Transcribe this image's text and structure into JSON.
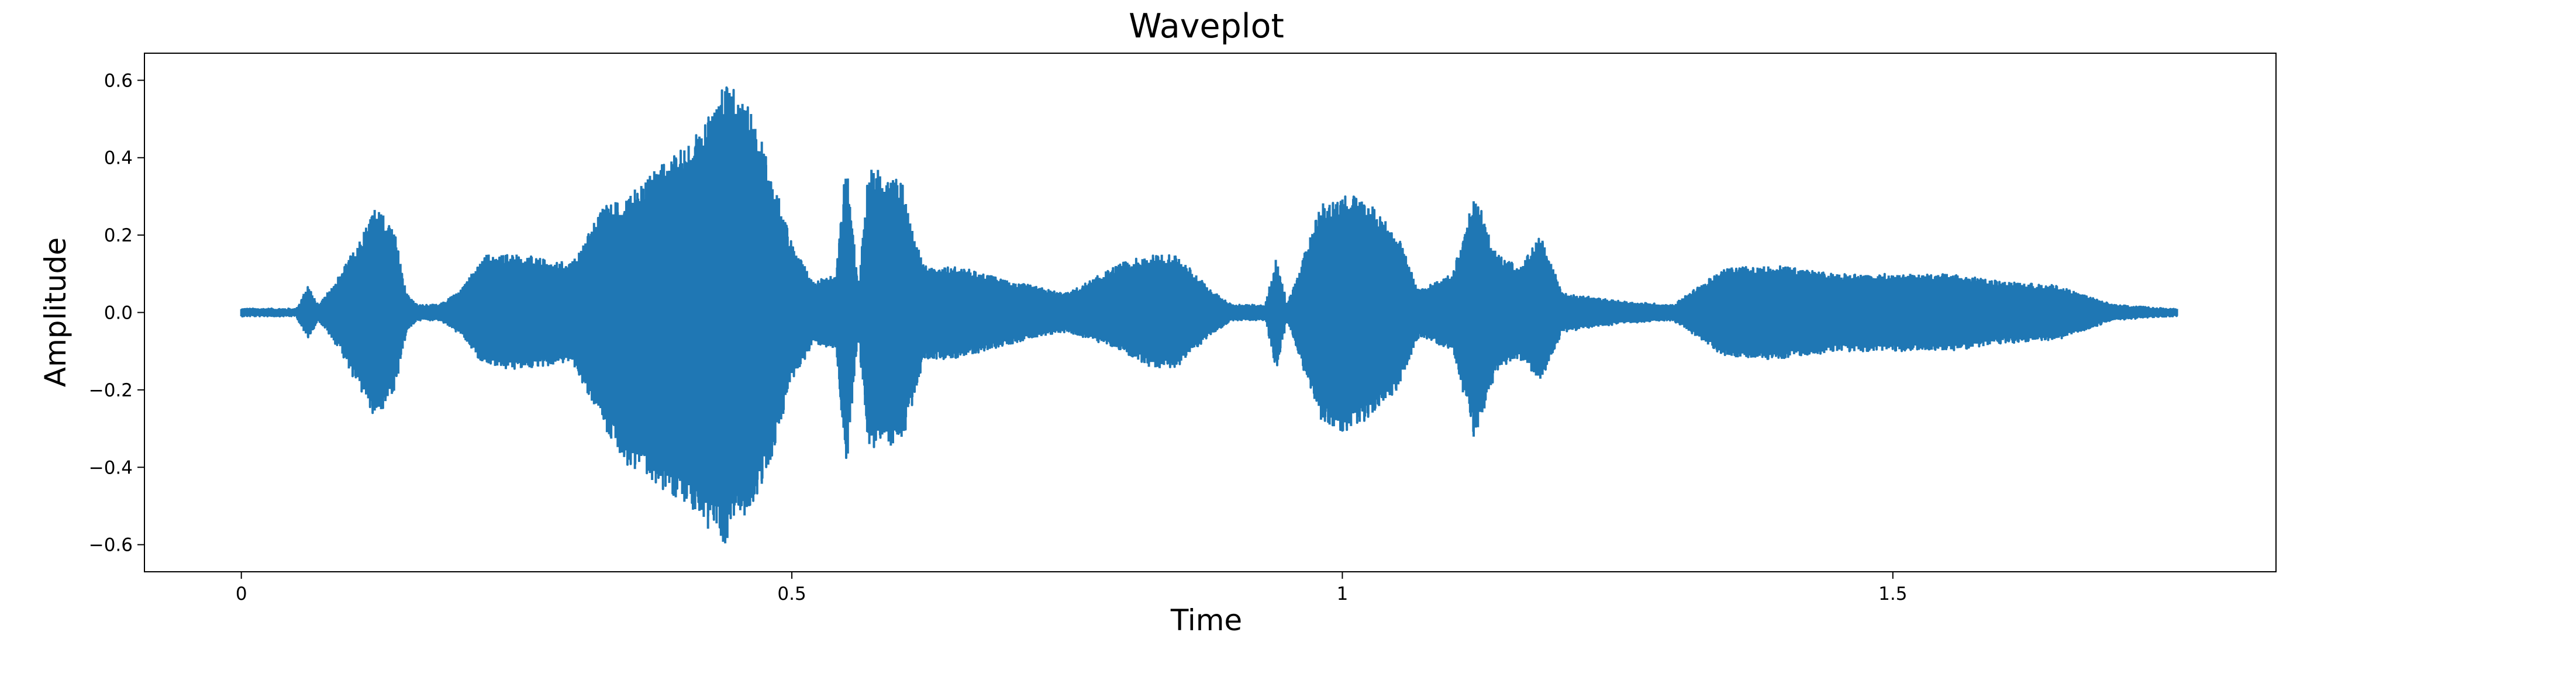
{
  "chart_data": {
    "type": "line",
    "title": "Waveplot",
    "xlabel": "Time",
    "ylabel": "Amplitude",
    "xlim": [
      -0.088,
      1.848
    ],
    "ylim": [
      -0.67,
      0.67
    ],
    "x_ticks": [
      0,
      0.5,
      1,
      1.5
    ],
    "x_tick_labels": [
      "0",
      "0.5",
      "1",
      "1.5"
    ],
    "y_ticks": [
      -0.6,
      -0.4,
      -0.2,
      0.0,
      0.2,
      0.4,
      0.6
    ],
    "y_tick_labels": [
      "−0.6",
      "−0.4",
      "−0.2",
      "0.0",
      "0.2",
      "0.4",
      "0.6"
    ],
    "grid": false,
    "legend": "none",
    "series_color": "#1f77b4",
    "duration": 1.758,
    "envelope": {
      "t": [
        0.0,
        0.05,
        0.06,
        0.07,
        0.09,
        0.11,
        0.12,
        0.13,
        0.14,
        0.15,
        0.16,
        0.18,
        0.2,
        0.22,
        0.25,
        0.3,
        0.33,
        0.35,
        0.38,
        0.4,
        0.42,
        0.44,
        0.46,
        0.48,
        0.5,
        0.52,
        0.54,
        0.55,
        0.56,
        0.57,
        0.6,
        0.62,
        0.65,
        0.7,
        0.75,
        0.8,
        0.83,
        0.85,
        0.88,
        0.9,
        0.93,
        0.94,
        0.95,
        0.98,
        1.0,
        1.02,
        1.05,
        1.07,
        1.1,
        1.12,
        1.14,
        1.16,
        1.18,
        1.2,
        1.25,
        1.3,
        1.34,
        1.35,
        1.4,
        1.45,
        1.5,
        1.55,
        1.6,
        1.65,
        1.7,
        1.75,
        1.758
      ],
      "pos": [
        0.01,
        0.01,
        0.07,
        0.02,
        0.1,
        0.2,
        0.27,
        0.25,
        0.2,
        0.05,
        0.02,
        0.02,
        0.06,
        0.15,
        0.15,
        0.13,
        0.28,
        0.3,
        0.38,
        0.42,
        0.48,
        0.6,
        0.55,
        0.38,
        0.18,
        0.08,
        0.1,
        0.42,
        0.06,
        0.38,
        0.34,
        0.12,
        0.12,
        0.08,
        0.05,
        0.13,
        0.15,
        0.15,
        0.06,
        0.02,
        0.02,
        0.15,
        0.02,
        0.28,
        0.3,
        0.3,
        0.2,
        0.06,
        0.1,
        0.32,
        0.15,
        0.12,
        0.2,
        0.05,
        0.03,
        0.02,
        0.1,
        0.12,
        0.12,
        0.1,
        0.1,
        0.1,
        0.08,
        0.07,
        0.02,
        0.01,
        0.01
      ],
      "neg": [
        0.01,
        0.01,
        0.07,
        0.02,
        0.1,
        0.22,
        0.27,
        0.25,
        0.2,
        0.05,
        0.02,
        0.02,
        0.06,
        0.14,
        0.15,
        0.13,
        0.3,
        0.4,
        0.45,
        0.5,
        0.55,
        0.6,
        0.52,
        0.4,
        0.18,
        0.08,
        0.1,
        0.43,
        0.06,
        0.36,
        0.34,
        0.12,
        0.12,
        0.08,
        0.05,
        0.1,
        0.15,
        0.14,
        0.06,
        0.02,
        0.02,
        0.15,
        0.02,
        0.28,
        0.31,
        0.28,
        0.2,
        0.06,
        0.1,
        0.33,
        0.15,
        0.12,
        0.18,
        0.05,
        0.03,
        0.02,
        0.1,
        0.12,
        0.12,
        0.1,
        0.1,
        0.1,
        0.08,
        0.07,
        0.02,
        0.01,
        0.01
      ]
    }
  }
}
